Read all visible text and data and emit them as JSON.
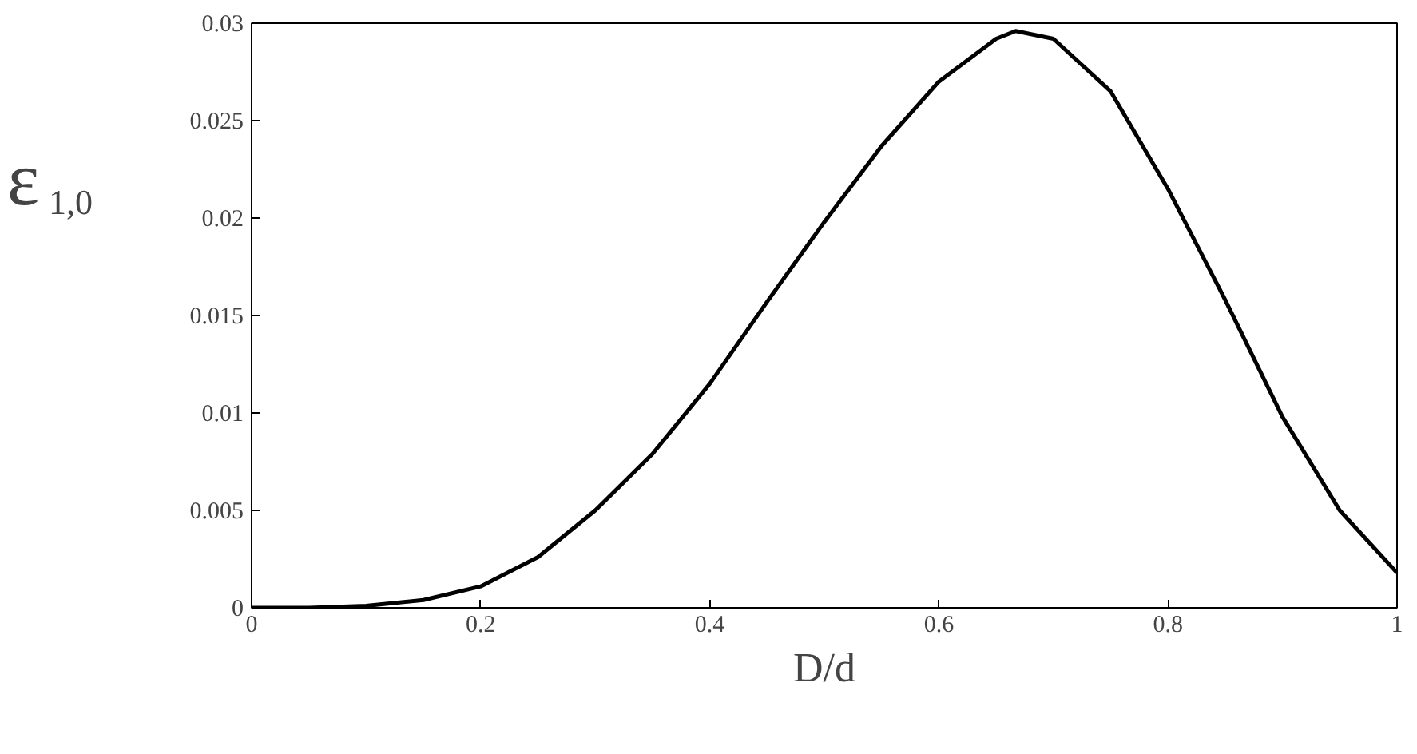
{
  "chart_data": {
    "type": "line",
    "xlabel": "D/d",
    "ylabel": "ε$_{1,0}$",
    "x": [
      0,
      0.05,
      0.1,
      0.15,
      0.2,
      0.25,
      0.3,
      0.35,
      0.4,
      0.45,
      0.5,
      0.55,
      0.6,
      0.65,
      0.667,
      0.7,
      0.75,
      0.8,
      0.85,
      0.9,
      0.95,
      1.0
    ],
    "series": [
      {
        "color": "#000000",
        "values": [
          0,
          0,
          0.0001,
          0.0004,
          0.0011,
          0.0026,
          0.005,
          0.0079,
          0.0115,
          0.0157,
          0.0198,
          0.0237,
          0.027,
          0.0292,
          0.0296,
          0.0292,
          0.0265,
          0.0215,
          0.0158,
          0.0098,
          0.005,
          0.0018
        ]
      }
    ],
    "xlim": [
      0,
      1
    ],
    "ylim": [
      0,
      0.03
    ],
    "xticks": [
      0,
      0.2,
      0.4,
      0.6,
      0.8,
      1
    ],
    "yticks": [
      0,
      0.005,
      0.01,
      0.015,
      0.02,
      0.025,
      0.03
    ],
    "grid": false,
    "marker": "none",
    "line_style": "solid"
  }
}
